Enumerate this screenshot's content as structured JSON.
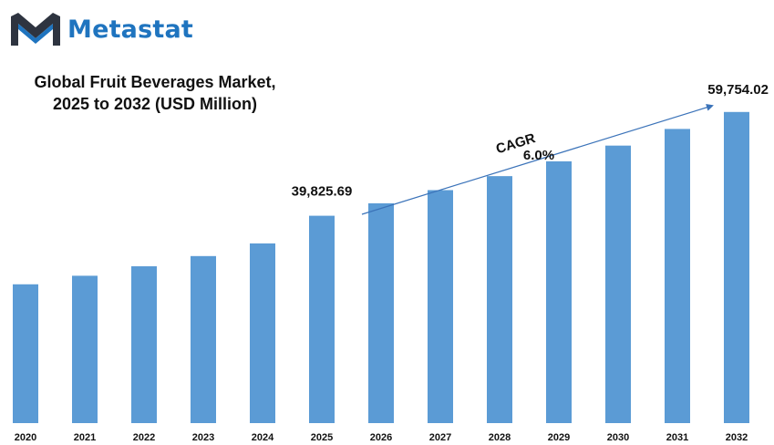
{
  "brand": {
    "name": "Metastat",
    "logo_icon": "metastat-m-logo",
    "color": "#1f74bf"
  },
  "chart_data": {
    "type": "bar",
    "title": [
      "Global Fruit Beverages Market,",
      "2025 to 2032 (USD Million)"
    ],
    "categories": [
      "2020",
      "2021",
      "2022",
      "2023",
      "2024",
      "2025",
      "2026",
      "2027",
      "2028",
      "2029",
      "2030",
      "2031",
      "2032"
    ],
    "values": [
      26660,
      28300,
      30120,
      32080,
      34510,
      39825.69,
      42215,
      44748,
      47433,
      50279,
      53296,
      56494,
      59754.02
    ],
    "ylim": [
      0,
      69000
    ],
    "bar_color": "#5b9bd5",
    "grid": false,
    "data_labels": [
      {
        "category": "2025",
        "text": "39,825.69"
      },
      {
        "category": "2032",
        "text": "59,754.02"
      }
    ],
    "annotation": {
      "label": "CAGR",
      "value": "6.0%"
    }
  }
}
